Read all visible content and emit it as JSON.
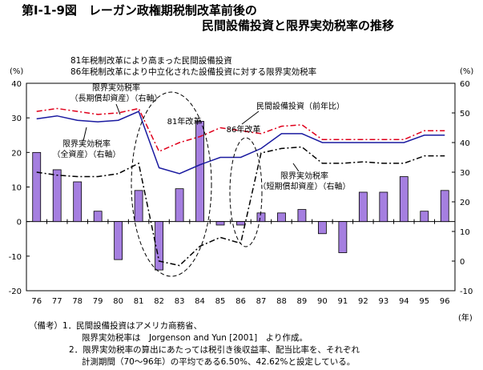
{
  "title": {
    "line1": "第Ⅰ-1-9図　レーガン政権期税制改革前後の",
    "line2": "民間設備投資と限界実効税率の推移"
  },
  "legend_text": {
    "line1": "81年税制改革により高まった民間設備投資",
    "line2": "86年税制改革により中立化された設備投資に対する限界実効税率"
  },
  "notes": {
    "line1": "（備考）1．民間設備投資はアメリカ商務省、",
    "line2": "限界実効税率は　Jorgenson and Yun [2001]　より作成。",
    "line3": "2．限界実効税率の算出にあたっては税引き後収益率、配当比率を、それぞれ",
    "line4": "計測期間（70～96年）の平均である6.50%、42.62%と設定している。"
  },
  "chart_data": {
    "type": "bar+line",
    "categories": [
      "76",
      "77",
      "78",
      "79",
      "80",
      "81",
      "82",
      "83",
      "84",
      "85",
      "86",
      "87",
      "88",
      "89",
      "90",
      "91",
      "92",
      "93",
      "94",
      "95",
      "96"
    ],
    "left_axis": {
      "label": "(%)",
      "ylim": [
        -20,
        40
      ],
      "ticks": [
        40,
        30,
        20,
        10,
        0,
        -10,
        -20
      ]
    },
    "right_axis": {
      "label": "(%)",
      "ylim": [
        -10,
        60
      ],
      "ticks": [
        60,
        50,
        40,
        30,
        20,
        10,
        0,
        -10
      ]
    },
    "x_unit": "(年)",
    "bars": {
      "name": "民間設備投資（前年比）",
      "axis": "left",
      "color": "#a57fe0",
      "values": [
        20.0,
        15.0,
        11.5,
        3.0,
        -11.0,
        9.0,
        -14.0,
        9.5,
        29.0,
        -1.0,
        -1.0,
        2.5,
        2.5,
        3.5,
        -3.5,
        -9.0,
        8.5,
        8.5,
        13.0,
        3.0,
        9.0
      ]
    },
    "series": [
      {
        "name": "限界実効税率（長期償却資産）（右軸）",
        "axis": "right",
        "style": "dash-dot",
        "color": "#e0001b",
        "values": [
          50.5,
          51.5,
          50.5,
          49.5,
          50.0,
          51.5,
          37.0,
          40.0,
          42.0,
          45.0,
          44.0,
          43.0,
          45.5,
          46.0,
          41.0,
          41.0,
          41.0,
          41.0,
          41.0,
          44.0,
          44.0
        ]
      },
      {
        "name": "限界実効税率（全資産）（右軸）",
        "axis": "right",
        "style": "solid",
        "color": "#1a1aa0",
        "values": [
          48.0,
          49.0,
          47.5,
          47.0,
          47.5,
          50.5,
          31.5,
          29.5,
          32.5,
          35.0,
          35.0,
          38.0,
          43.0,
          43.0,
          40.0,
          40.0,
          40.0,
          40.0,
          40.0,
          42.5,
          42.5
        ]
      },
      {
        "name": "限界実効税率（短期償却資産）（右軸）",
        "axis": "right",
        "style": "dash-dot",
        "color": "#000000",
        "values": [
          30.0,
          29.0,
          28.5,
          28.5,
          29.5,
          33.0,
          0.0,
          -1.5,
          5.0,
          8.0,
          6.0,
          36.5,
          38.0,
          38.5,
          33.0,
          33.0,
          33.5,
          33.0,
          33.0,
          35.5,
          35.5
        ]
      }
    ],
    "annotations": {
      "long_term": [
        "限界実効税率",
        "（長期償却資産）（右軸）"
      ],
      "all_assets": [
        "限界実効税率",
        "（全資産）（右軸）"
      ],
      "investment": "民間設備投資（前年比）",
      "short_term": [
        "限界実効税率",
        "（短期償却資産）（右軸）"
      ],
      "reform81": "81年改革",
      "reform86": "86年改革"
    }
  }
}
